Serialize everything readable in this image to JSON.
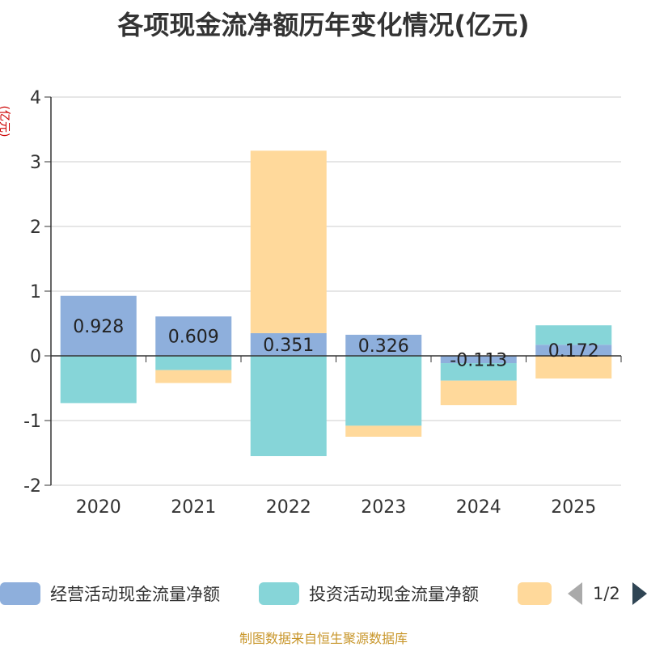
{
  "colors": {
    "operating": "#8EAFDC",
    "investing": "#86D5D8",
    "financing": "#FFD99B",
    "title": "#333333",
    "unit": "#CC0000",
    "source": "#C8962A",
    "grid": "#CCCCCC",
    "axis": "#333333"
  },
  "header": {
    "title": "各项现金流净额历年变化情况(亿元)"
  },
  "chart_data": {
    "type": "bar",
    "stacked": true,
    "title": "各项现金流净额历年变化情况(亿元)",
    "ylabel": "(亿元)",
    "xlabel": "",
    "ylim": [
      -2,
      4
    ],
    "yticks": [
      -2,
      -1,
      0,
      1,
      2,
      3,
      4
    ],
    "grid": true,
    "legend_position": "bottom",
    "categories": [
      "2020",
      "2021",
      "2022",
      "2023",
      "2024",
      "2025"
    ],
    "series": [
      {
        "name": "经营活动现金流量净额",
        "values": [
          0.928,
          0.609,
          0.351,
          0.326,
          -0.113,
          0.172
        ],
        "labels": [
          "0.928",
          "0.609",
          "0.351",
          "0.326",
          "-0.113",
          "0.172"
        ]
      },
      {
        "name": "投资活动现金流量净额",
        "values": [
          -0.73,
          -0.22,
          -1.55,
          -1.08,
          -0.27,
          0.3
        ]
      },
      {
        "name": "",
        "values": [
          0.0,
          -0.2,
          2.82,
          -0.17,
          -0.38,
          -0.35
        ]
      }
    ]
  },
  "legend": {
    "items": [
      {
        "label": "经营活动现金流量净额",
        "color_key": "operating"
      },
      {
        "label": "投资活动现金流量净额",
        "color_key": "investing"
      },
      {
        "label": "",
        "color_key": "financing"
      }
    ],
    "page": "1/2"
  },
  "footer": {
    "source": "制图数据来自恒生聚源数据库"
  }
}
